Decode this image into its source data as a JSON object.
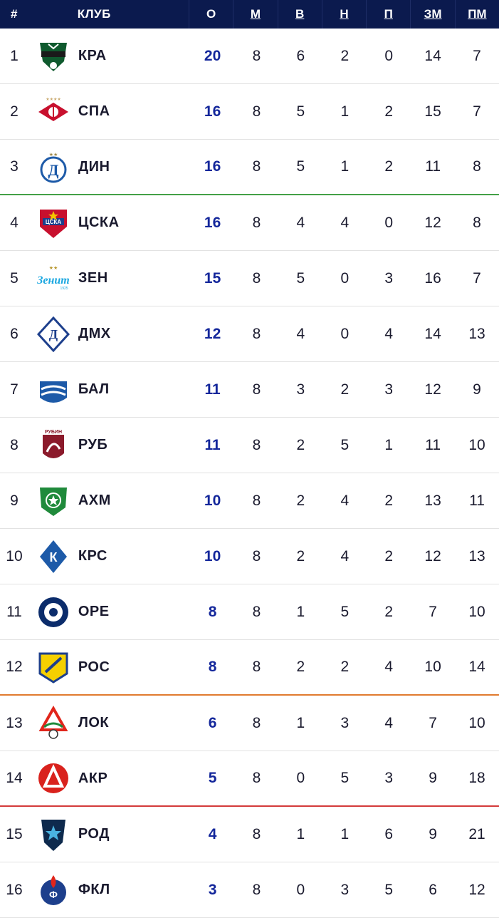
{
  "header": {
    "pos": "#",
    "club": "КЛУБ",
    "pts": "О",
    "played": "М",
    "won": "В",
    "drawn": "Н",
    "lost": "П",
    "gf": "ЗМ",
    "ga": "ПМ"
  },
  "rows": [
    {
      "pos": "1",
      "club": "КРА",
      "pts": "20",
      "played": "8",
      "won": "6",
      "drawn": "2",
      "lost": "0",
      "gf": "14",
      "ga": "7",
      "logo": "krasnodar-logo"
    },
    {
      "pos": "2",
      "club": "СПА",
      "pts": "16",
      "played": "8",
      "won": "5",
      "drawn": "1",
      "lost": "2",
      "gf": "15",
      "ga": "7",
      "logo": "spartak-logo"
    },
    {
      "pos": "3",
      "club": "ДИН",
      "pts": "16",
      "played": "8",
      "won": "5",
      "drawn": "1",
      "lost": "2",
      "gf": "11",
      "ga": "8",
      "logo": "dynamo-logo"
    },
    {
      "pos": "4",
      "club": "ЦСКА",
      "pts": "16",
      "played": "8",
      "won": "4",
      "drawn": "4",
      "lost": "0",
      "gf": "12",
      "ga": "8",
      "logo": "cska-logo"
    },
    {
      "pos": "5",
      "club": "ЗЕН",
      "pts": "15",
      "played": "8",
      "won": "5",
      "drawn": "0",
      "lost": "3",
      "gf": "16",
      "ga": "7",
      "logo": "zenit-logo"
    },
    {
      "pos": "6",
      "club": "ДМХ",
      "pts": "12",
      "played": "8",
      "won": "4",
      "drawn": "0",
      "lost": "4",
      "gf": "14",
      "ga": "13",
      "logo": "dynamo-mkh-logo"
    },
    {
      "pos": "7",
      "club": "БАЛ",
      "pts": "11",
      "played": "8",
      "won": "3",
      "drawn": "2",
      "lost": "3",
      "gf": "12",
      "ga": "9",
      "logo": "baltika-logo"
    },
    {
      "pos": "8",
      "club": "РУБ",
      "pts": "11",
      "played": "8",
      "won": "2",
      "drawn": "5",
      "lost": "1",
      "gf": "11",
      "ga": "10",
      "logo": "rubin-logo"
    },
    {
      "pos": "9",
      "club": "АХМ",
      "pts": "10",
      "played": "8",
      "won": "2",
      "drawn": "4",
      "lost": "2",
      "gf": "13",
      "ga": "11",
      "logo": "akhmat-logo"
    },
    {
      "pos": "10",
      "club": "КРС",
      "pts": "10",
      "played": "8",
      "won": "2",
      "drawn": "4",
      "lost": "2",
      "gf": "12",
      "ga": "13",
      "logo": "krylia-logo"
    },
    {
      "pos": "11",
      "club": "ОРЕ",
      "pts": "8",
      "played": "8",
      "won": "1",
      "drawn": "5",
      "lost": "2",
      "gf": "7",
      "ga": "10",
      "logo": "orenburg-logo"
    },
    {
      "pos": "12",
      "club": "РОС",
      "pts": "8",
      "played": "8",
      "won": "2",
      "drawn": "2",
      "lost": "4",
      "gf": "10",
      "ga": "14",
      "logo": "rostov-logo"
    },
    {
      "pos": "13",
      "club": "ЛОК",
      "pts": "6",
      "played": "8",
      "won": "1",
      "drawn": "3",
      "lost": "4",
      "gf": "7",
      "ga": "10",
      "logo": "lokomotiv-logo"
    },
    {
      "pos": "14",
      "club": "АКР",
      "pts": "5",
      "played": "8",
      "won": "0",
      "drawn": "5",
      "lost": "3",
      "gf": "9",
      "ga": "18",
      "logo": "akron-logo"
    },
    {
      "pos": "15",
      "club": "РОД",
      "pts": "4",
      "played": "8",
      "won": "1",
      "drawn": "1",
      "lost": "6",
      "gf": "9",
      "ga": "21",
      "logo": "rodina-logo"
    },
    {
      "pos": "16",
      "club": "ФКЛ",
      "pts": "3",
      "played": "8",
      "won": "0",
      "drawn": "3",
      "lost": "5",
      "gf": "6",
      "ga": "12",
      "logo": "fakel-logo"
    }
  ],
  "colors": {
    "header_bg": "#0b1a4e",
    "points": "#14279b",
    "zone_green": "#43a047",
    "zone_orange": "#e07a2f",
    "zone_red": "#d43a3a"
  }
}
